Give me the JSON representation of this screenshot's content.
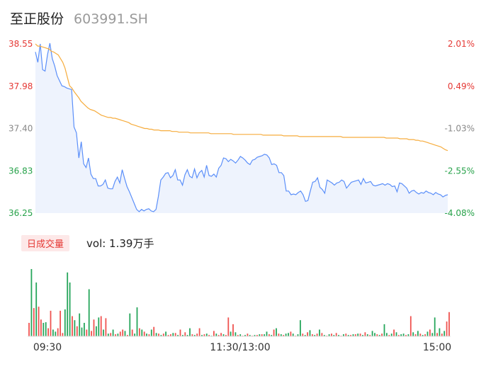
{
  "header": {
    "name": "至正股份",
    "code": "603991.SH"
  },
  "volume_panel": {
    "tag_label": "日成交量",
    "vol_label": "vol: 1.39万手"
  },
  "chart_data": [
    {
      "type": "line",
      "y_left_ticks": [
        "38.55",
        "37.98",
        "37.40",
        "36.83",
        "36.25"
      ],
      "y_right_ticks": [
        "2.01%",
        "0.49%",
        "-1.03%",
        "-2.55%",
        "-4.08%"
      ],
      "ylim": [
        36.25,
        38.55
      ],
      "x_ticks": [
        "09:30",
        "11:30/13:00",
        "15:00"
      ],
      "series": [
        {
          "color": "#5b8ff9",
          "values": [
            38.44,
            38.3,
            38.55,
            38.2,
            38.18,
            38.4,
            38.56,
            38.35,
            38.25,
            38.12,
            38.05,
            37.98,
            37.97,
            37.95,
            37.94,
            37.93,
            37.42,
            37.34,
            37.0,
            37.22,
            36.92,
            36.87,
            37.0,
            36.78,
            36.72,
            36.72,
            36.62,
            36.62,
            36.64,
            36.7,
            36.59,
            36.58,
            36.58,
            36.68,
            36.74,
            36.66,
            36.84,
            36.72,
            36.61,
            36.54,
            36.46,
            36.38,
            36.3,
            36.27,
            36.3,
            36.28,
            36.3,
            36.31,
            36.28,
            36.27,
            36.3,
            36.48,
            36.7,
            36.74,
            36.79,
            36.8,
            36.73,
            36.76,
            36.84,
            36.7,
            36.7,
            36.63,
            36.77,
            36.84,
            36.75,
            36.73,
            36.85,
            36.73,
            36.8,
            36.83,
            36.74,
            36.9,
            36.76,
            36.75,
            36.78,
            36.74,
            36.86,
            36.9,
            37.0,
            36.99,
            36.95,
            36.98,
            36.96,
            36.93,
            36.97,
            37.02,
            37.0,
            36.97,
            36.93,
            36.91,
            36.97,
            36.98,
            37.01,
            37.02,
            37.03,
            37.05,
            37.04,
            37.0,
            36.91,
            36.92,
            36.9,
            36.8,
            36.8,
            36.76,
            36.55,
            36.55,
            36.5,
            36.51,
            36.5,
            36.53,
            36.55,
            36.5,
            36.41,
            36.42,
            36.55,
            36.67,
            36.68,
            36.73,
            36.6,
            36.57,
            36.52,
            36.7,
            36.68,
            36.66,
            36.63,
            36.66,
            36.67,
            36.7,
            36.68,
            36.59,
            36.63,
            36.67,
            36.68,
            36.69,
            36.7,
            36.64,
            36.72,
            36.66,
            36.67,
            36.68,
            36.63,
            36.62,
            36.63,
            36.64,
            36.65,
            36.63,
            36.65,
            36.64,
            36.61,
            36.62,
            36.54,
            36.66,
            36.65,
            36.62,
            36.59,
            36.52,
            36.55,
            36.56,
            36.53,
            36.51,
            36.53,
            36.52,
            36.55,
            36.53,
            36.52,
            36.5,
            36.53,
            36.51,
            36.5,
            36.47,
            36.49,
            36.5
          ]
        },
        {
          "color": "#f6ac3d",
          "values": [
            38.55,
            38.52,
            38.52,
            38.51,
            38.5,
            38.49,
            38.48,
            38.45,
            38.44,
            38.42,
            38.4,
            38.35,
            38.3,
            38.22,
            38.1,
            37.98,
            37.95,
            37.9,
            37.86,
            37.82,
            37.77,
            37.74,
            37.71,
            37.68,
            37.66,
            37.65,
            37.64,
            37.62,
            37.6,
            37.58,
            37.57,
            37.56,
            37.55,
            37.55,
            37.54,
            37.54,
            37.53,
            37.52,
            37.51,
            37.5,
            37.49,
            37.48,
            37.46,
            37.45,
            37.44,
            37.43,
            37.42,
            37.41,
            37.4,
            37.4,
            37.39,
            37.39,
            37.38,
            37.38,
            37.38,
            37.37,
            37.37,
            37.37,
            37.37,
            37.37,
            37.36,
            37.36,
            37.36,
            37.35,
            37.35,
            37.35,
            37.35,
            37.35,
            37.34,
            37.34,
            37.34,
            37.34,
            37.34,
            37.34,
            37.34,
            37.34,
            37.34,
            37.33,
            37.33,
            37.33,
            37.33,
            37.33,
            37.33,
            37.33,
            37.33,
            37.33,
            37.33,
            37.32,
            37.32,
            37.32,
            37.32,
            37.32,
            37.32,
            37.32,
            37.32,
            37.32,
            37.32,
            37.32,
            37.32,
            37.32,
            37.31,
            37.31,
            37.31,
            37.31,
            37.31,
            37.31,
            37.31,
            37.31,
            37.31,
            37.3,
            37.3,
            37.3,
            37.3,
            37.3,
            37.3,
            37.3,
            37.29,
            37.29,
            37.29,
            37.29,
            37.29,
            37.29,
            37.29,
            37.29,
            37.29,
            37.29,
            37.29,
            37.29,
            37.29,
            37.29,
            37.29,
            37.29,
            37.29,
            37.29,
            37.29,
            37.28,
            37.28,
            37.28,
            37.28,
            37.28,
            37.28,
            37.28,
            37.28,
            37.28,
            37.28,
            37.28,
            37.28,
            37.28,
            37.28,
            37.28,
            37.28,
            37.28,
            37.28,
            37.28,
            37.27,
            37.27,
            37.27,
            37.27,
            37.27,
            37.27,
            37.26,
            37.26,
            37.26,
            37.26,
            37.25,
            37.25,
            37.25,
            37.24,
            37.24,
            37.23,
            37.23,
            37.22,
            37.21,
            37.2,
            37.19,
            37.18,
            37.17,
            37.16,
            37.15,
            37.13,
            37.11,
            37.1
          ]
        }
      ]
    },
    {
      "type": "bar",
      "volumes": [
        0.2,
        1.0,
        0.42,
        0.8,
        0.44,
        0.25,
        0.2,
        0.21,
        0.12,
        0.38,
        0.1,
        0.07,
        0.12,
        0.38,
        0.05,
        0.4,
        0.95,
        0.8,
        0.3,
        0.24,
        0.15,
        0.34,
        0.13,
        0.2,
        0.1,
        0.7,
        0.08,
        0.25,
        0.15,
        0.28,
        0.3,
        0.1,
        0.27,
        0.04,
        0.05,
        0.1,
        0.03,
        0.04,
        0.07,
        0.1,
        0.08,
        0.02,
        0.34,
        0.1,
        0.04,
        0.43,
        0.12,
        0.1,
        0.07,
        0.04,
        0.03,
        0.1,
        0.14,
        0.05,
        0.04,
        0.02,
        0.04,
        0.07,
        0.02,
        0.03,
        0.05,
        0.05,
        0.02,
        0.1,
        0.02,
        0.06,
        0.02,
        0.12,
        0.03,
        0.02,
        0.04,
        0.12,
        0.02,
        0.03,
        0.04,
        0.02,
        0.01,
        0.08,
        0.04,
        0.02,
        0.05,
        0.03,
        0.02,
        0.28,
        0.07,
        0.18,
        0.06,
        0.02,
        0.03,
        0.01,
        0.02,
        0.04,
        0.02,
        0.01,
        0.02,
        0.02,
        0.03,
        0.03,
        0.03,
        0.07,
        0.03,
        0.02,
        0.1,
        0.12,
        0.04,
        0.03,
        0.02,
        0.04,
        0.05,
        0.07,
        0.04,
        0.01,
        0.03,
        0.24,
        0.04,
        0.02,
        0.06,
        0.09,
        0.03,
        0.02,
        0.04,
        0.1,
        0.05,
        0.02,
        0.01,
        0.03,
        0.04,
        0.02,
        0.05,
        0.02,
        0.01,
        0.03,
        0.04,
        0.02,
        0.02,
        0.03,
        0.03,
        0.04,
        0.04,
        0.02,
        0.06,
        0.03,
        0.02,
        0.08,
        0.05,
        0.03,
        0.02,
        0.04,
        0.18,
        0.05,
        0.02,
        0.04,
        0.1,
        0.06,
        0.02,
        0.03,
        0.04,
        0.02,
        0.03,
        0.3,
        0.06,
        0.03,
        0.08,
        0.04,
        0.02,
        0.03,
        0.07,
        0.1,
        0.05,
        0.28,
        0.05,
        0.12,
        0.04,
        0.08,
        0.22,
        0.36
      ],
      "direction": [
        "r",
        "g",
        "r",
        "g",
        "r",
        "r",
        "g",
        "g",
        "r",
        "r",
        "g",
        "g",
        "r",
        "r",
        "r",
        "g",
        "g",
        "g",
        "r",
        "g",
        "r",
        "g",
        "g",
        "g",
        "r",
        "g",
        "r",
        "r",
        "g",
        "g",
        "r",
        "g",
        "r",
        "g",
        "r",
        "g",
        "r",
        "g",
        "r",
        "r",
        "g",
        "r",
        "g",
        "r",
        "g",
        "g",
        "r",
        "g",
        "r",
        "g",
        "r",
        "g",
        "r",
        "g",
        "r",
        "g",
        "r",
        "g",
        "r",
        "r",
        "g",
        "r",
        "g",
        "r",
        "g",
        "r",
        "g",
        "g",
        "r",
        "g",
        "r",
        "r",
        "g",
        "r",
        "g",
        "r",
        "g",
        "r",
        "g",
        "r",
        "r",
        "g",
        "r",
        "r",
        "g",
        "r",
        "g",
        "r",
        "g",
        "r",
        "g",
        "r",
        "g",
        "r",
        "g",
        "r",
        "g",
        "r",
        "g",
        "g",
        "r",
        "g",
        "r",
        "g",
        "r",
        "g",
        "r",
        "g",
        "g",
        "r",
        "g",
        "r",
        "g",
        "g",
        "r",
        "g",
        "r",
        "g",
        "r",
        "g",
        "r",
        "g",
        "r",
        "g",
        "r",
        "g",
        "r",
        "g",
        "r",
        "g",
        "r",
        "g",
        "r",
        "g",
        "r",
        "g",
        "r",
        "g",
        "r",
        "g",
        "r",
        "g",
        "r",
        "g",
        "g",
        "r",
        "g",
        "r",
        "g",
        "g",
        "r",
        "g",
        "r",
        "g",
        "r",
        "g",
        "g",
        "r",
        "g",
        "r",
        "g",
        "r",
        "g",
        "r",
        "g",
        "r",
        "g",
        "r",
        "g",
        "g",
        "r",
        "g",
        "r",
        "g",
        "r",
        "r"
      ],
      "colors": {
        "up": "#ef5350",
        "down": "#26a65b"
      }
    }
  ]
}
